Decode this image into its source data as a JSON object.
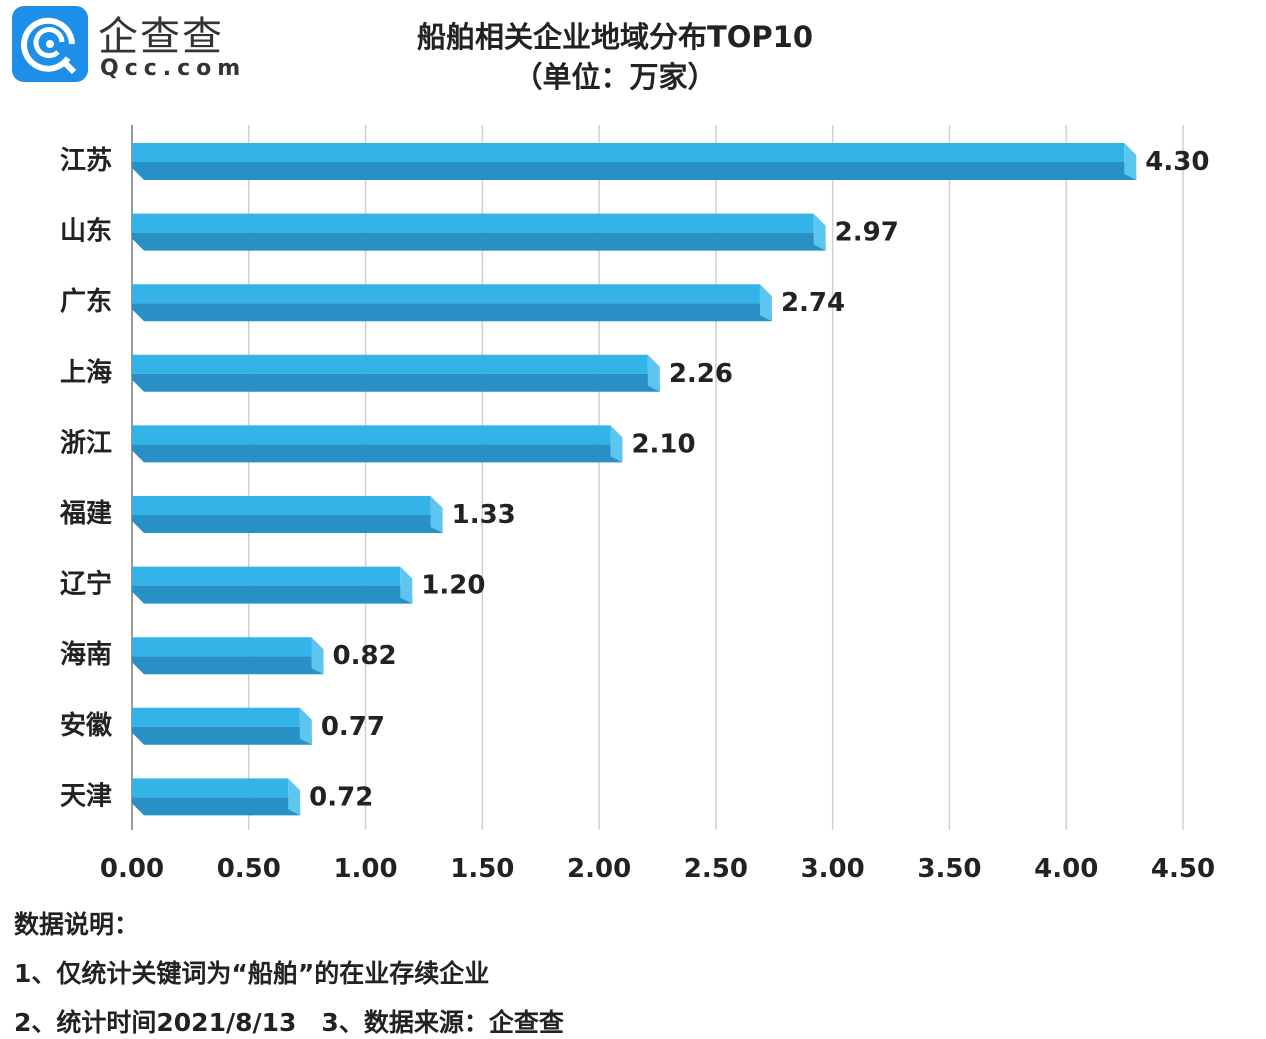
{
  "logo": {
    "name_cn": "企查查",
    "name_en": "Qcc.com"
  },
  "colors": {
    "bar_top": "#33b3e8",
    "bar_bottom": "#2890c4",
    "bar_cap": "#5cc6f0",
    "grid": "#d0d0d0"
  },
  "chart_data": {
    "type": "bar",
    "orientation": "horizontal",
    "title": "船舶相关企业地域分布TOP10",
    "subtitle": "（单位：万家）",
    "categories": [
      "江苏",
      "山东",
      "广东",
      "上海",
      "浙江",
      "福建",
      "辽宁",
      "海南",
      "安徽",
      "天津"
    ],
    "values": [
      4.3,
      2.97,
      2.74,
      2.26,
      2.1,
      1.33,
      1.2,
      0.82,
      0.77,
      0.72
    ],
    "value_labels": [
      "4.30",
      "2.97",
      "2.74",
      "2.26",
      "2.10",
      "1.33",
      "1.20",
      "0.82",
      "0.77",
      "0.72"
    ],
    "xlim": [
      0,
      4.5
    ],
    "xticks": [
      "0.00",
      "0.50",
      "1.00",
      "1.50",
      "2.00",
      "2.50",
      "3.00",
      "3.50",
      "4.00",
      "4.50"
    ],
    "grid": true
  },
  "notes": {
    "heading": "数据说明：",
    "line1": "1、仅统计关键词为“船舶”的在业存续企业",
    "line2": "2、统计时间2021/8/13　3、数据来源：企查查"
  }
}
